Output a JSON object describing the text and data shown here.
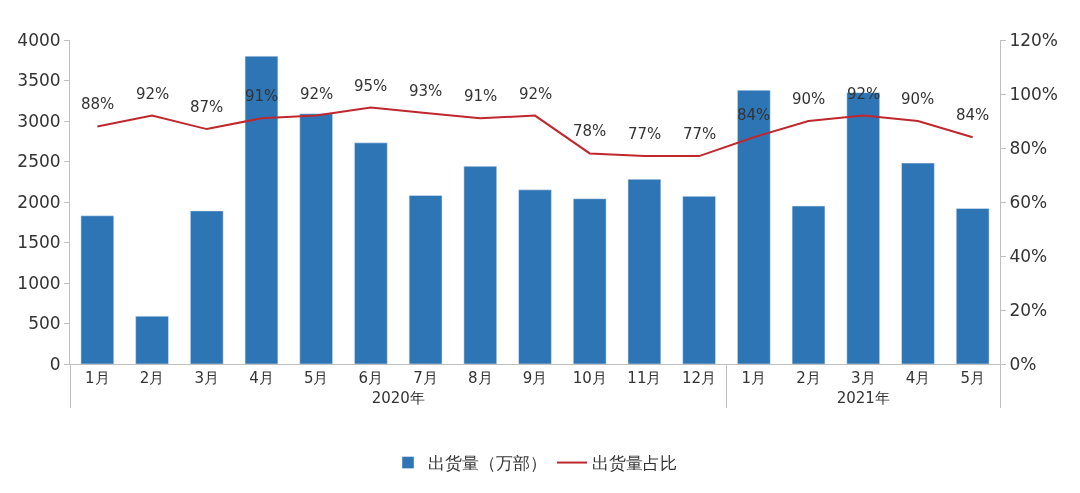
{
  "chart_data": {
    "type": "bar",
    "categories": [
      "1月",
      "2月",
      "3月",
      "4月",
      "5月",
      "6月",
      "7月",
      "8月",
      "9月",
      "10月",
      "11月",
      "12月",
      "1月",
      "2月",
      "3月",
      "4月",
      "5月"
    ],
    "annotations": [
      "2020年",
      "2021年"
    ],
    "series": [
      {
        "name": "出货量（万部）",
        "color": "#2e75b6",
        "values": [
          1830,
          590,
          1890,
          3800,
          3090,
          2730,
          2080,
          2440,
          2150,
          2040,
          2280,
          2070,
          3380,
          1950,
          3350,
          2480,
          1920
        ]
      },
      {
        "name": "出货量占比",
        "type": "line",
        "axis": "y2",
        "color": "#c0272d",
        "marker": "none",
        "line_style": "solid",
        "values": [
          88,
          92,
          87,
          91,
          92,
          95,
          93,
          91,
          92,
          78,
          77,
          77,
          84,
          90,
          92,
          90,
          84
        ],
        "value_labels": [
          "88%",
          "92%",
          "87%",
          "91%",
          "92%",
          "95%",
          "93%",
          "91%",
          "92%",
          "78%",
          "77%",
          "77%",
          "84%",
          "90%",
          "92%",
          "90%",
          "84%"
        ]
      }
    ],
    "ylim": [
      0,
      4000
    ],
    "yticks": [
      0,
      500,
      1000,
      1500,
      2000,
      2500,
      3000,
      3500,
      4000
    ],
    "y2lim": [
      0,
      120
    ],
    "y2ticks": [
      {
        "value": 0,
        "label": "0%"
      },
      {
        "value": 20,
        "label": "20%"
      },
      {
        "value": 40,
        "label": "40%"
      },
      {
        "value": 60,
        "label": "60%"
      },
      {
        "value": 80,
        "label": "80%"
      },
      {
        "value": 100,
        "label": "100%"
      },
      {
        "value": 120,
        "label": "120%"
      }
    ],
    "legend": "bottom"
  }
}
